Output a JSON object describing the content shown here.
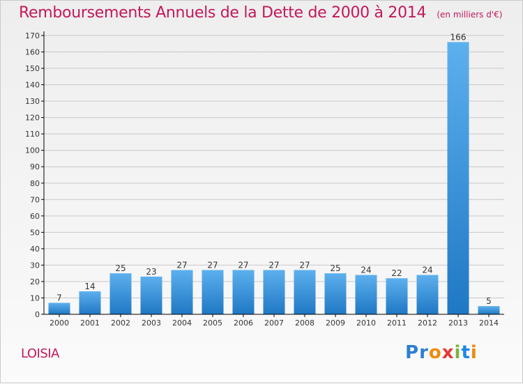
{
  "title": "Remboursements Annuels de la Dette de 2000 à 2014",
  "unit_note": "(en milliers d'€)",
  "commune": "LOISIA",
  "logo": {
    "text": "Proxiti",
    "letter_colors": [
      "#2e7fd1",
      "#2e7fd1",
      "#f08a0c",
      "#e53935",
      "#7cb342",
      "#1e88e5",
      "#f08a0c"
    ]
  },
  "colors": {
    "title": "#c2185b",
    "bar_light": "#5db0ee",
    "bar_dark": "#1f78c4",
    "grid": "#c8c8c8",
    "axis": "#000000"
  },
  "chart_data": {
    "type": "bar",
    "categories": [
      "2000",
      "2001",
      "2002",
      "2003",
      "2004",
      "2005",
      "2006",
      "2007",
      "2008",
      "2009",
      "2010",
      "2011",
      "2012",
      "2013",
      "2014"
    ],
    "values": [
      7,
      14,
      25,
      23,
      27,
      27,
      27,
      27,
      27,
      25,
      24,
      22,
      24,
      166,
      5
    ],
    "yticks": [
      0,
      10,
      20,
      30,
      40,
      50,
      60,
      70,
      80,
      90,
      100,
      110,
      120,
      130,
      140,
      150,
      160,
      170
    ],
    "ylim": [
      0,
      170
    ],
    "grid": true,
    "data_labels": true
  }
}
